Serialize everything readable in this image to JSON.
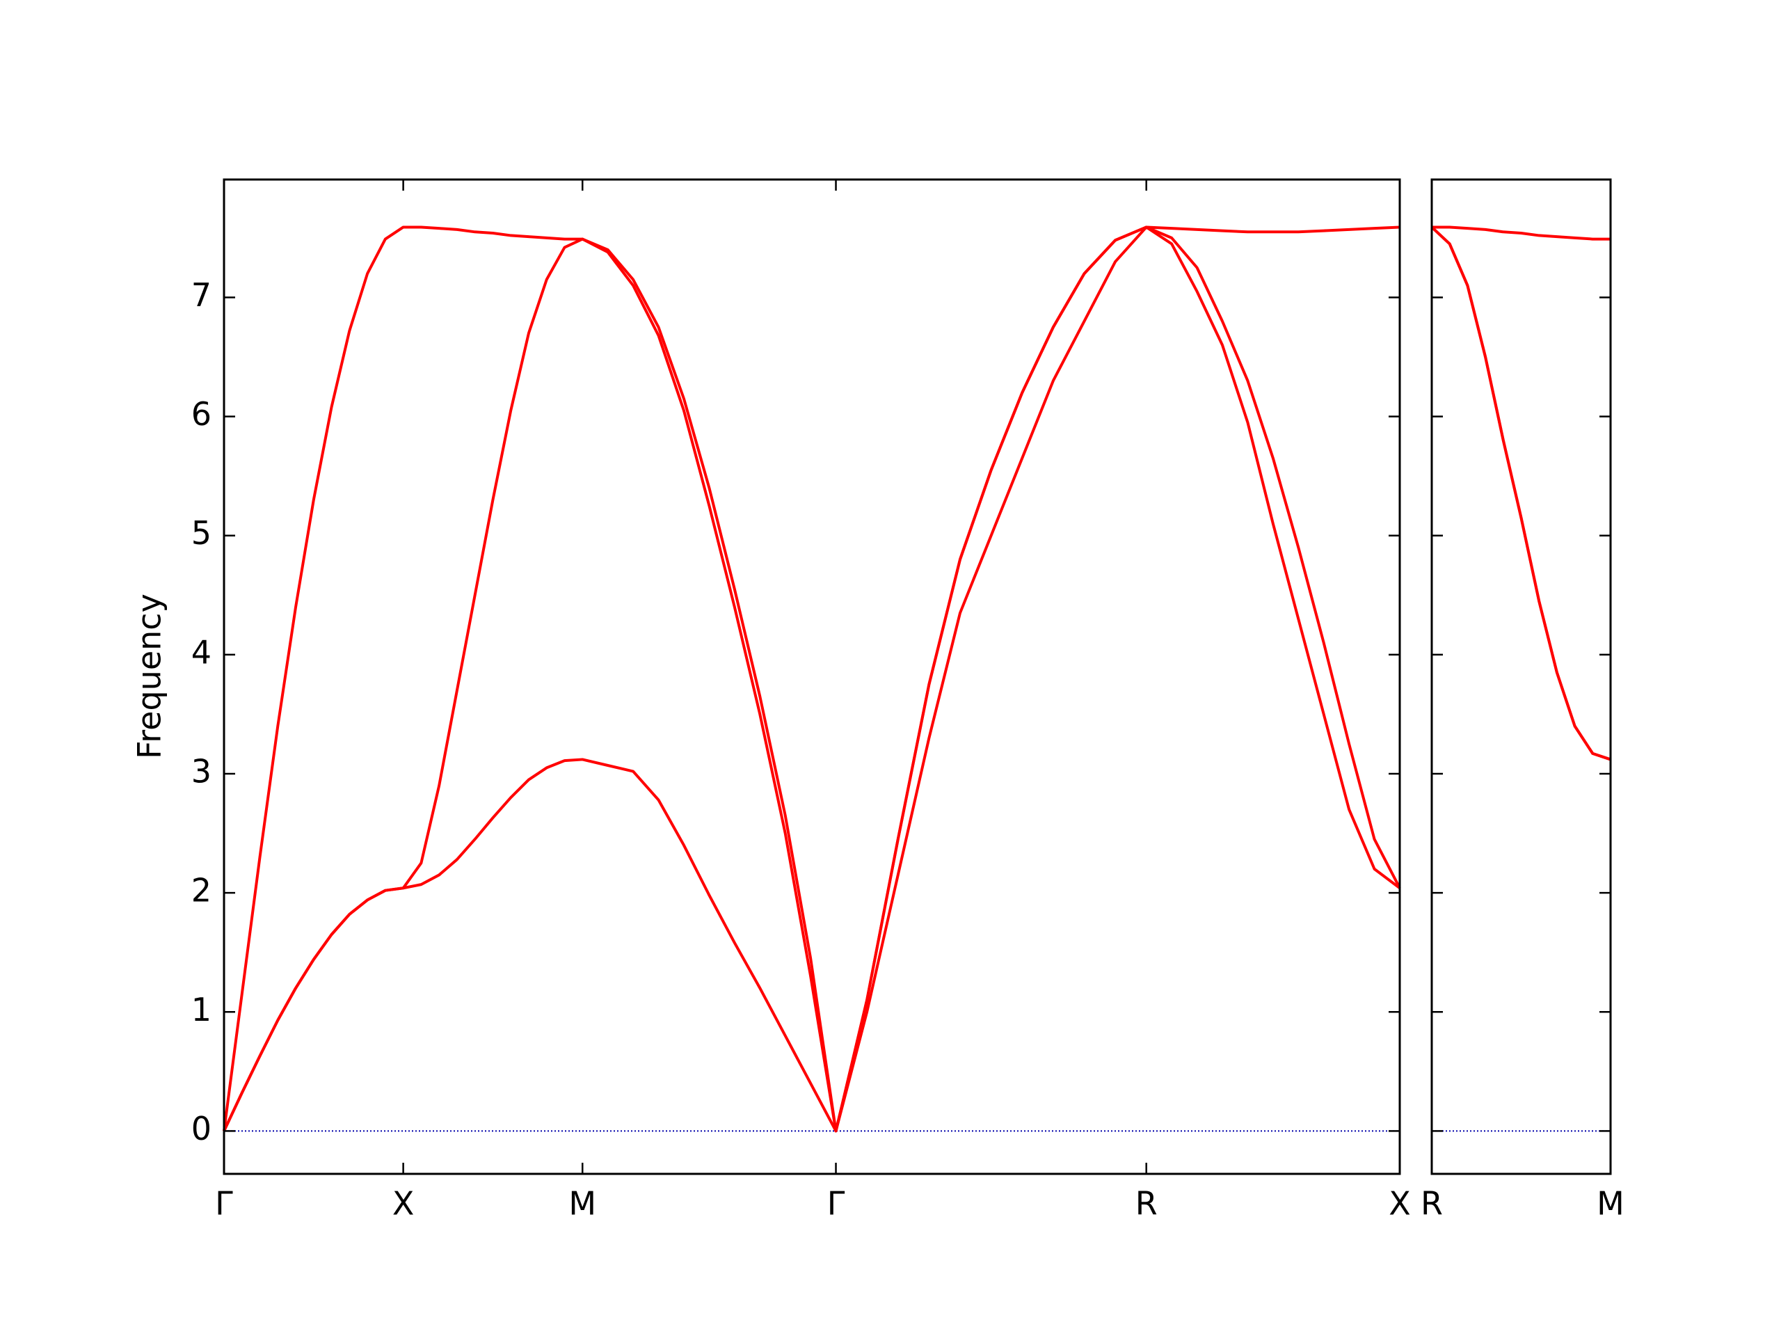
{
  "chart_data": [
    {
      "type": "line",
      "y_label": "Frequency",
      "x": [
        0,
        0.05,
        0.1,
        0.15,
        0.2,
        0.25,
        0.3,
        0.35,
        0.4,
        0.45,
        0.5,
        0.55,
        0.6,
        0.65,
        0.7,
        0.75,
        0.8,
        0.85,
        0.9,
        0.95,
        1.0,
        1.0707,
        1.1414,
        1.2121,
        1.2828,
        1.3536,
        1.4243,
        1.495,
        1.5657,
        1.6364,
        1.707,
        1.7936,
        1.8802,
        1.9668,
        2.0534,
        2.14,
        2.2266,
        2.3132,
        2.3998,
        2.4864,
        2.573,
        2.6437,
        2.7144,
        2.7851,
        2.8558,
        2.9265,
        2.9972,
        3.0679,
        3.1386,
        3.2093,
        3.28
      ],
      "xlim": [
        0,
        3.28
      ],
      "xticks": [
        {
          "value": 0,
          "label": "Γ"
        },
        {
          "value": 0.5,
          "label": "X"
        },
        {
          "value": 1.0,
          "label": "M"
        },
        {
          "value": 1.707,
          "label": "Γ"
        },
        {
          "value": 2.573,
          "label": "R"
        },
        {
          "value": 3.28,
          "label": "X"
        }
      ],
      "ylim": [
        -0.36,
        7.99
      ],
      "yticks": [
        0,
        1,
        2,
        3,
        4,
        5,
        6,
        7
      ],
      "hline": {
        "value": 0,
        "color": "#0000aa"
      },
      "series": [
        {
          "color": "#ff0000",
          "values": [
            0,
            1.15,
            2.3,
            3.4,
            4.4,
            5.3,
            6.08,
            6.72,
            7.2,
            7.49,
            7.59,
            7.59,
            7.58,
            7.57,
            7.55,
            7.54,
            7.52,
            7.51,
            7.5,
            7.49,
            7.49,
            7.4,
            7.15,
            6.75,
            6.15,
            5.4,
            4.55,
            3.65,
            2.65,
            1.45,
            0,
            1.1,
            2.45,
            3.75,
            4.8,
            5.55,
            6.2,
            6.75,
            7.2,
            7.48,
            7.59,
            7.58,
            7.57,
            7.56,
            7.55,
            7.55,
            7.55,
            7.56,
            7.57,
            7.58,
            7.59
          ]
        },
        {
          "color": "#ff0000",
          "values": [
            0,
            0.32,
            0.63,
            0.93,
            1.2,
            1.44,
            1.65,
            1.82,
            1.94,
            2.02,
            2.04,
            2.25,
            2.9,
            3.7,
            4.5,
            5.3,
            6.05,
            6.7,
            7.15,
            7.42,
            7.49,
            7.38,
            7.1,
            6.68,
            6.05,
            5.25,
            4.4,
            3.5,
            2.5,
            1.3,
            0,
            1.1,
            2.45,
            3.75,
            4.8,
            5.55,
            6.2,
            6.75,
            7.2,
            7.48,
            7.59,
            7.5,
            7.25,
            6.8,
            6.3,
            5.65,
            4.9,
            4.1,
            3.25,
            2.45,
            2.04
          ]
        },
        {
          "color": "#ff0000",
          "values": [
            0,
            0.32,
            0.63,
            0.93,
            1.2,
            1.44,
            1.65,
            1.82,
            1.94,
            2.02,
            2.04,
            2.07,
            2.15,
            2.28,
            2.45,
            2.63,
            2.8,
            2.95,
            3.05,
            3.11,
            3.12,
            3.07,
            3.02,
            2.78,
            2.4,
            1.98,
            1.58,
            1.2,
            0.8,
            0.4,
            0,
            1.0,
            2.15,
            3.3,
            4.35,
            5.0,
            5.65,
            6.3,
            6.8,
            7.3,
            7.59,
            7.45,
            7.05,
            6.6,
            5.95,
            5.1,
            4.3,
            3.5,
            2.7,
            2.2,
            2.04
          ]
        }
      ]
    },
    {
      "type": "line",
      "x": [
        3.28,
        3.33,
        3.38,
        3.43,
        3.48,
        3.53,
        3.58,
        3.63,
        3.68,
        3.73,
        3.78
      ],
      "xlim": [
        3.28,
        3.78
      ],
      "xticks": [
        {
          "value": 3.28,
          "label": "R"
        },
        {
          "value": 3.78,
          "label": "M"
        }
      ],
      "ylim": [
        -0.36,
        7.99
      ],
      "yticks": [
        0,
        1,
        2,
        3,
        4,
        5,
        6,
        7
      ],
      "hline": {
        "value": 0,
        "color": "#0000aa"
      },
      "series": [
        {
          "color": "#ff0000",
          "values": [
            7.59,
            7.59,
            7.58,
            7.57,
            7.55,
            7.54,
            7.52,
            7.51,
            7.5,
            7.49,
            7.49
          ]
        },
        {
          "color": "#ff0000",
          "values": [
            7.59,
            7.45,
            7.1,
            6.5,
            5.8,
            5.15,
            4.45,
            3.85,
            3.4,
            3.17,
            3.12
          ]
        },
        {
          "color": "#ff0000",
          "values": [
            7.59,
            7.45,
            7.1,
            6.5,
            5.8,
            5.15,
            4.45,
            3.85,
            3.4,
            3.17,
            3.12
          ]
        }
      ]
    }
  ]
}
